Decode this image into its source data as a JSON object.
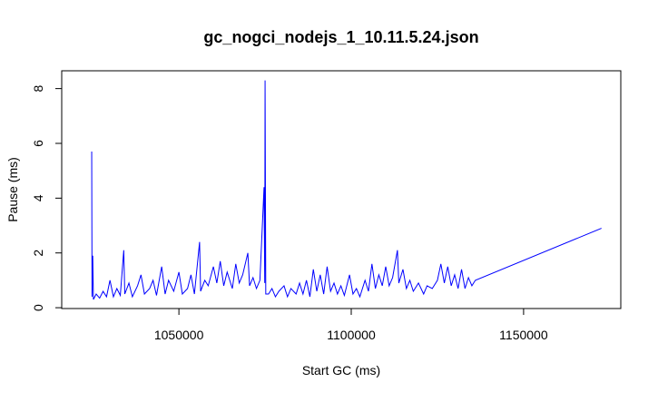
{
  "chart_data": {
    "type": "line",
    "title": "gc_nogci_nodejs_1_10.11.5.24.json",
    "x_label": "Start GC (ms)",
    "y_label": "Pause (ms)",
    "xlim": [
      1016000,
      1178200
    ],
    "ylim": [
      -0.03,
      8.65
    ],
    "xticks": [
      1050000,
      1100000,
      1150000
    ],
    "yticks": [
      0,
      2,
      4,
      6,
      8
    ],
    "series": [
      {
        "color": "#0000ff",
        "x": [
          1024700,
          1024800,
          1025000,
          1025200,
          1026000,
          1027000,
          1028000,
          1029000,
          1030000,
          1031000,
          1032000,
          1033000,
          1034000,
          1034300,
          1035500,
          1036500,
          1038000,
          1039000,
          1040000,
          1041500,
          1042500,
          1043500,
          1045000,
          1046000,
          1047000,
          1048500,
          1050000,
          1051000,
          1052500,
          1053500,
          1054500,
          1056000,
          1056300,
          1057500,
          1058500,
          1060000,
          1061000,
          1062000,
          1063000,
          1064000,
          1065500,
          1066500,
          1067500,
          1068500,
          1070000,
          1070500,
          1071500,
          1072500,
          1073500,
          1074700,
          1074900,
          1075000,
          1075200,
          1076000,
          1077000,
          1078000,
          1079000,
          1080500,
          1081500,
          1082500,
          1084000,
          1085000,
          1086000,
          1087000,
          1088000,
          1089000,
          1090000,
          1091000,
          1092000,
          1093000,
          1094000,
          1095000,
          1096000,
          1097000,
          1098000,
          1099500,
          1100500,
          1101500,
          1102500,
          1104000,
          1105000,
          1106000,
          1107000,
          1108000,
          1109000,
          1110000,
          1111000,
          1112000,
          1113400,
          1113800,
          1115000,
          1116000,
          1117000,
          1118000,
          1119500,
          1121000,
          1122000,
          1123500,
          1125000,
          1126000,
          1127000,
          1128000,
          1129000,
          1130000,
          1131000,
          1132000,
          1133000,
          1134000,
          1135000,
          1136000,
          1172600
        ],
        "values": [
          5.7,
          0.4,
          1.9,
          0.3,
          0.5,
          0.35,
          0.6,
          0.4,
          1.0,
          0.4,
          0.7,
          0.45,
          2.1,
          0.5,
          0.9,
          0.4,
          0.8,
          1.2,
          0.5,
          0.7,
          1.0,
          0.45,
          1.5,
          0.5,
          1.0,
          0.6,
          1.3,
          0.5,
          0.7,
          1.2,
          0.5,
          2.4,
          0.6,
          1.0,
          0.8,
          1.5,
          0.9,
          1.7,
          0.8,
          1.3,
          0.7,
          1.6,
          0.9,
          1.2,
          2.0,
          0.8,
          1.1,
          0.7,
          1.0,
          4.4,
          0.9,
          8.3,
          0.5,
          0.5,
          0.7,
          0.4,
          0.6,
          0.8,
          0.4,
          0.7,
          0.5,
          0.9,
          0.5,
          1.0,
          0.4,
          1.4,
          0.6,
          1.2,
          0.5,
          1.5,
          0.6,
          0.9,
          0.5,
          0.8,
          0.45,
          1.2,
          0.5,
          0.7,
          0.4,
          1.0,
          0.6,
          1.6,
          0.7,
          1.2,
          0.8,
          1.5,
          0.8,
          1.1,
          2.1,
          0.9,
          1.4,
          0.7,
          1.0,
          0.6,
          0.9,
          0.5,
          0.8,
          0.7,
          1.0,
          1.6,
          0.9,
          1.5,
          0.8,
          1.2,
          0.7,
          1.4,
          0.7,
          1.1,
          0.8,
          1.0,
          2.9
        ]
      }
    ]
  }
}
